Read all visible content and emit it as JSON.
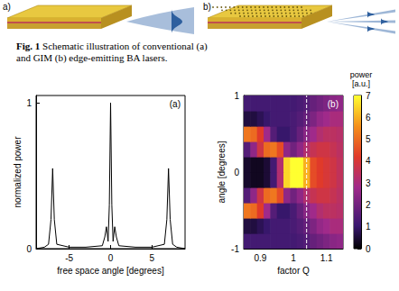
{
  "schematic": {
    "panels": [
      {
        "label": "a)",
        "patterned": false
      },
      {
        "label": "b)",
        "patterned": true
      }
    ],
    "caption_label": "Fig. 1",
    "caption": "Schematic illustration of conventional (a) and GIM (b) edge-emitting BA lasers."
  },
  "chart_data": [
    {
      "type": "line",
      "panel_label": "(a)",
      "x_label": "free space angle [degrees]",
      "y_label": "normalized power",
      "x": [
        -9,
        -8,
        -7.5,
        -7.2,
        -7.0,
        -6.8,
        -6.5,
        -5,
        -3,
        -1,
        -0.7,
        -0.5,
        -0.3,
        -0.15,
        0,
        0.15,
        0.3,
        0.5,
        0.7,
        1,
        3,
        5,
        6.5,
        6.8,
        7.0,
        7.2,
        7.5,
        8,
        9
      ],
      "values": [
        0,
        0.01,
        0.03,
        0.2,
        0.55,
        0.2,
        0.03,
        0.01,
        0.01,
        0.02,
        0.08,
        0.15,
        0.05,
        0.3,
        1.0,
        0.3,
        0.05,
        0.15,
        0.08,
        0.02,
        0.01,
        0.01,
        0.03,
        0.2,
        0.55,
        0.2,
        0.03,
        0.01,
        0
      ],
      "color": "#000000",
      "xlim": [
        -9,
        9
      ],
      "xticks": [
        -5,
        0,
        5
      ],
      "ylim": [
        0,
        1.05
      ],
      "yticks": [
        0,
        1
      ],
      "grid": false
    },
    {
      "type": "heatmap",
      "panel_label": "(b)",
      "x_label": "factor Q",
      "y_label": "angle [degrees]",
      "x": [
        0.86,
        0.88,
        0.9,
        0.92,
        0.94,
        0.96,
        0.98,
        1.0,
        1.02,
        1.04,
        1.06,
        1.08,
        1.1,
        1.12,
        1.14
      ],
      "y": [
        -0.9,
        -0.7,
        -0.5,
        -0.3,
        -0.1,
        0.1,
        0.3,
        0.5,
        0.7,
        0.9
      ],
      "cells": [
        [
          1.2,
          1.2,
          1.2,
          1.2,
          1.2,
          1.2,
          1.2,
          1.2,
          1.3,
          1.5,
          1.8,
          2.0,
          2.2,
          2.4,
          2.5
        ],
        [
          0.6,
          0.6,
          0.8,
          1.0,
          1.2,
          1.2,
          1.2,
          1.3,
          1.5,
          1.8,
          2.2,
          2.6,
          2.8,
          3.0,
          3.0
        ],
        [
          5.2,
          5.0,
          4.2,
          2.8,
          1.5,
          1.0,
          1.0,
          1.3,
          1.8,
          2.4,
          2.8,
          3.2,
          3.4,
          3.4,
          3.3
        ],
        [
          1.5,
          2.5,
          3.8,
          5.0,
          5.2,
          4.5,
          2.5,
          2.0,
          2.5,
          3.2,
          3.6,
          3.8,
          3.8,
          3.6,
          3.4
        ],
        [
          0.4,
          0.3,
          0.3,
          0.5,
          1.2,
          3.2,
          6.5,
          7.0,
          7.0,
          6.0,
          4.5,
          4.2,
          4.0,
          3.8,
          3.5
        ],
        [
          0.4,
          0.3,
          0.3,
          0.5,
          1.2,
          3.2,
          6.5,
          7.0,
          7.0,
          6.0,
          4.5,
          4.2,
          4.0,
          3.8,
          3.5
        ],
        [
          1.5,
          2.5,
          3.8,
          5.0,
          5.2,
          4.5,
          2.5,
          2.0,
          2.5,
          3.2,
          3.6,
          3.8,
          3.8,
          3.6,
          3.4
        ],
        [
          5.2,
          5.0,
          4.2,
          2.8,
          1.5,
          1.0,
          1.0,
          1.3,
          1.8,
          2.4,
          2.8,
          3.2,
          3.4,
          3.4,
          3.3
        ],
        [
          0.6,
          0.6,
          0.8,
          1.0,
          1.2,
          1.2,
          1.2,
          1.3,
          1.5,
          1.8,
          2.2,
          2.6,
          2.8,
          3.0,
          3.0
        ],
        [
          1.2,
          1.2,
          1.2,
          1.2,
          1.2,
          1.2,
          1.2,
          1.2,
          1.3,
          1.5,
          1.8,
          2.0,
          2.2,
          2.4,
          2.5
        ]
      ],
      "xlim": [
        0.85,
        1.15
      ],
      "xticks": [
        0.9,
        1,
        1.1
      ],
      "ylim": [
        -1,
        1
      ],
      "yticks": [
        -1,
        0,
        1
      ],
      "colorbar": {
        "label": "power [a.u.]",
        "range": [
          0,
          7
        ],
        "ticks": [
          0,
          1,
          2,
          3,
          4,
          5,
          6,
          7
        ]
      },
      "reference_line": {
        "x": 1.04,
        "line_style": "dashed",
        "color": "#ffffff"
      },
      "grid": false
    }
  ]
}
